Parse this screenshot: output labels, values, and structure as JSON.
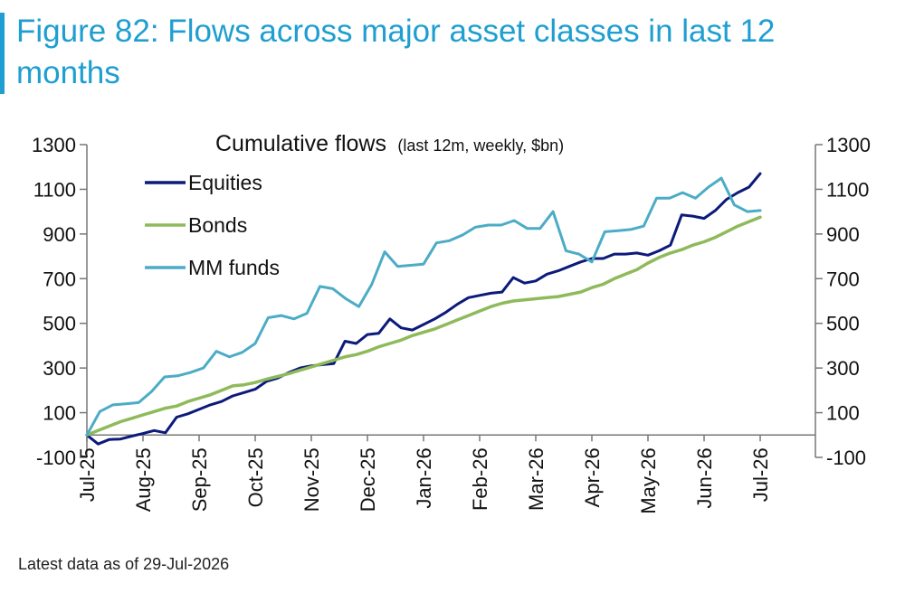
{
  "figure": {
    "title": "Figure 82: Flows across major asset classes in last 12 months",
    "footnote": "Latest data as of 29-Jul-2026"
  },
  "chart_data": {
    "type": "line",
    "title": "Cumulative flows",
    "subtitle": "(last 12m, weekly, $bn)",
    "xlabel": "",
    "ylabel": "",
    "ylim": [
      -100,
      1300
    ],
    "yticks": [
      -100,
      100,
      300,
      500,
      700,
      900,
      1100,
      1300
    ],
    "ytick_labels": [
      "-100",
      "100",
      "300",
      "500",
      "700",
      "900",
      "1100",
      "1300"
    ],
    "x_tick_labels": [
      "Jul-25",
      "Aug-25",
      "Sep-25",
      "Oct-25",
      "Nov-25",
      "Dec-25",
      "Jan-26",
      "Feb-26",
      "Mar-26",
      "Apr-26",
      "May-26",
      "Jun-26",
      "Jul-26"
    ],
    "dual_y_axis": true,
    "grid": false,
    "legend_position": "top-left",
    "series": [
      {
        "name": "Equities",
        "color": "#0c1a7a",
        "values": [
          0,
          -40,
          -20,
          -18,
          -5,
          7,
          20,
          10,
          80,
          95,
          115,
          135,
          150,
          175,
          190,
          205,
          240,
          255,
          280,
          300,
          310,
          315,
          320,
          420,
          410,
          450,
          455,
          520,
          480,
          470,
          495,
          520,
          550,
          585,
          615,
          625,
          635,
          640,
          705,
          680,
          690,
          720,
          735,
          755,
          775,
          790,
          790,
          810,
          810,
          815,
          805,
          825,
          850,
          985,
          980,
          970,
          1005,
          1055,
          1085,
          1110,
          1170
        ]
      },
      {
        "name": "Bonds",
        "color": "#8fba5b",
        "values": [
          0,
          20,
          40,
          60,
          75,
          90,
          105,
          120,
          130,
          150,
          165,
          180,
          200,
          220,
          225,
          235,
          250,
          262,
          275,
          290,
          305,
          320,
          335,
          350,
          360,
          375,
          395,
          410,
          425,
          445,
          460,
          475,
          495,
          515,
          535,
          555,
          575,
          590,
          600,
          605,
          610,
          615,
          620,
          630,
          640,
          660,
          675,
          700,
          720,
          740,
          770,
          795,
          815,
          830,
          850,
          865,
          885,
          910,
          935,
          955,
          975
        ]
      },
      {
        "name": "MM funds",
        "color": "#4bacc6",
        "values": [
          0,
          105,
          135,
          140,
          145,
          195,
          260,
          265,
          280,
          300,
          375,
          350,
          370,
          410,
          525,
          535,
          520,
          545,
          665,
          655,
          610,
          575,
          675,
          820,
          755,
          760,
          765,
          860,
          870,
          895,
          930,
          940,
          940,
          960,
          925,
          925,
          1000,
          825,
          810,
          775,
          910,
          915,
          920,
          935,
          1060,
          1060,
          1085,
          1060,
          1110,
          1150,
          1030,
          1000,
          1005
        ]
      }
    ]
  }
}
